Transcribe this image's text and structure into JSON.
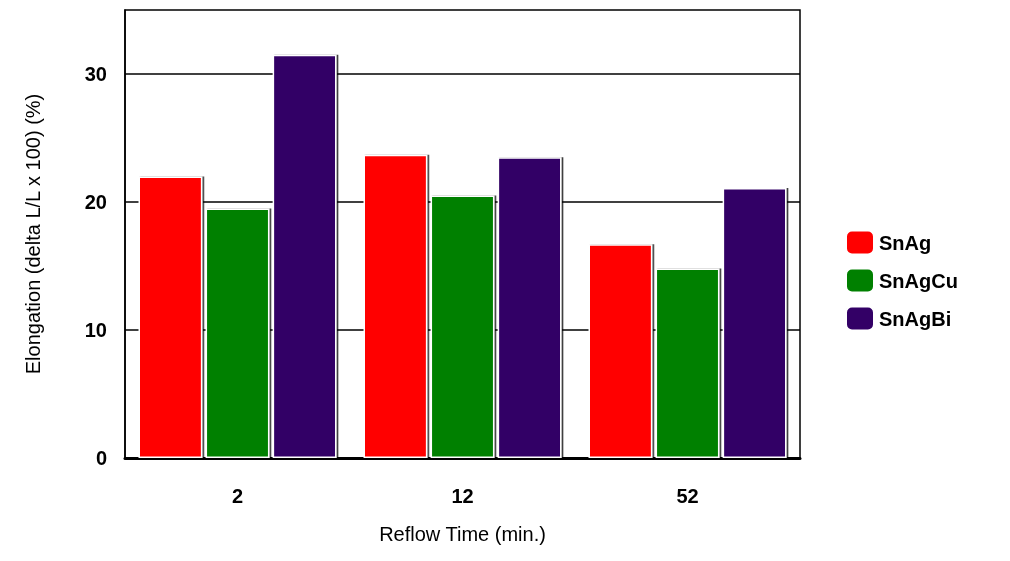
{
  "chart_data": {
    "type": "bar",
    "xlabel": "Reflow Time (min.)",
    "ylabel": "Elongation (delta L/L x 100) (%)",
    "categories": [
      "2",
      "12",
      "52"
    ],
    "series": [
      {
        "name": "SnAg",
        "color": "#ff0000",
        "values": [
          22.0,
          23.7,
          16.7
        ]
      },
      {
        "name": "SnAgCu",
        "color": "#008000",
        "values": [
          19.5,
          20.5,
          14.8
        ]
      },
      {
        "name": "SnAgBi",
        "color": "#330066",
        "values": [
          31.5,
          23.5,
          21.1
        ]
      }
    ],
    "ylim": [
      0,
      35
    ],
    "yticks": [
      0,
      10,
      20,
      30
    ],
    "grid": "y",
    "legend": "right"
  }
}
